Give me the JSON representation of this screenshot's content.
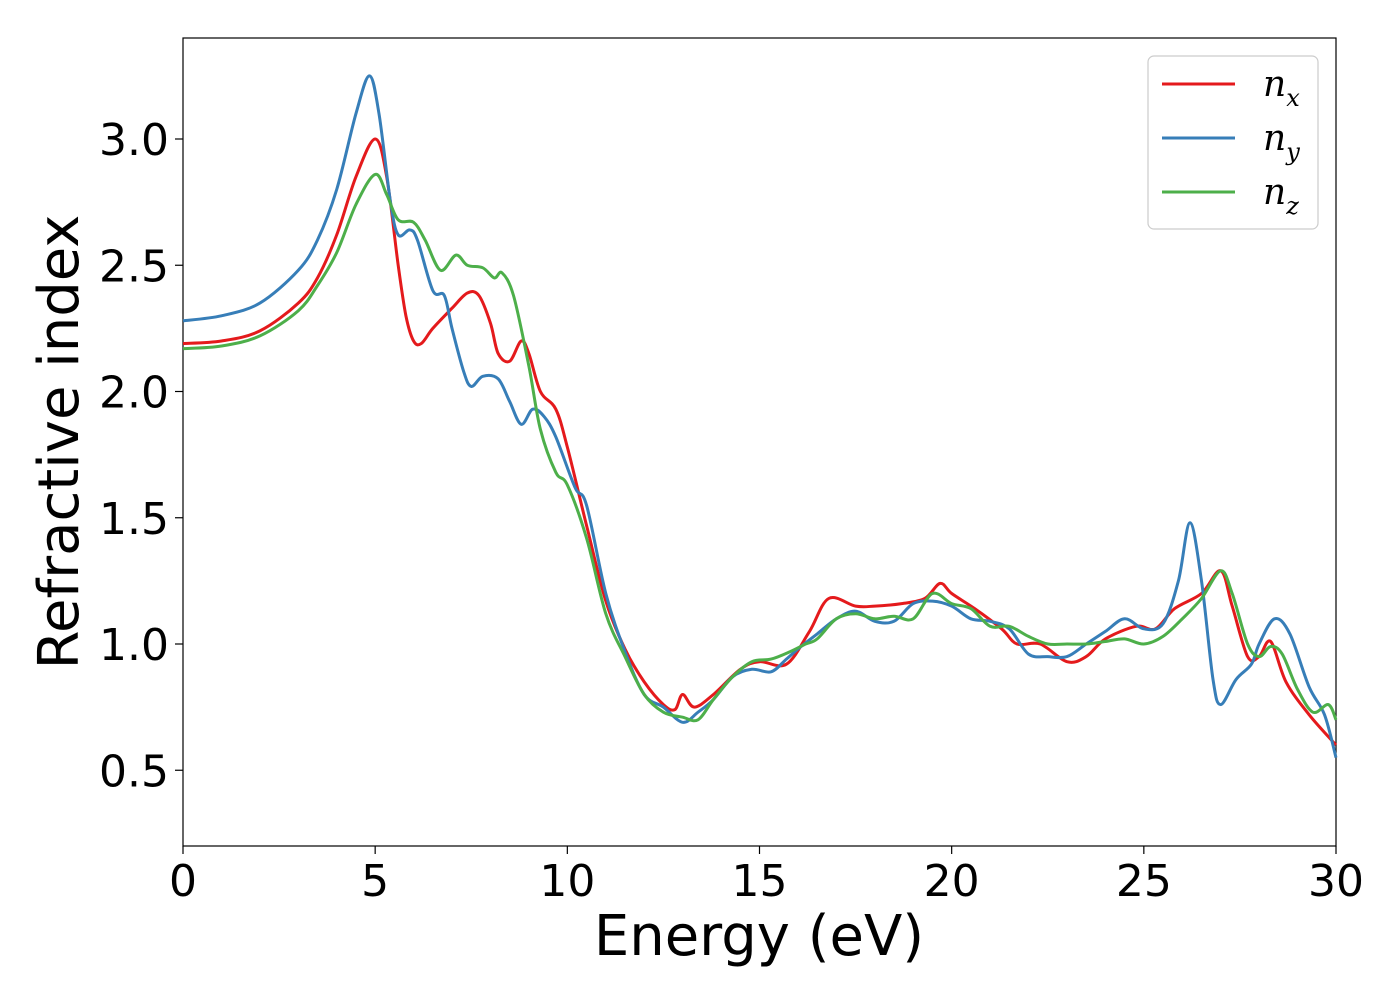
{
  "chart_data": {
    "type": "line",
    "title": "",
    "xlabel": "Energy (eV)",
    "ylabel": "Refractive index",
    "xlim": [
      0,
      30
    ],
    "ylim": [
      0.2,
      3.4
    ],
    "xticks": [
      "0",
      "5",
      "10",
      "15",
      "20",
      "25",
      "30"
    ],
    "yticks": [
      "0.5",
      "1.0",
      "1.5",
      "2.0",
      "2.5",
      "3.0"
    ],
    "grid": false,
    "legend_position": "top-right",
    "series": [
      {
        "name": "n",
        "subscript": "x",
        "color": "#e41a1c",
        "points": [
          [
            0,
            2.19
          ],
          [
            1,
            2.2
          ],
          [
            2,
            2.24
          ],
          [
            3,
            2.35
          ],
          [
            3.5,
            2.45
          ],
          [
            4,
            2.62
          ],
          [
            4.5,
            2.85
          ],
          [
            5,
            3.0
          ],
          [
            5.3,
            2.85
          ],
          [
            5.6,
            2.5
          ],
          [
            5.8,
            2.3
          ],
          [
            6.0,
            2.2
          ],
          [
            6.2,
            2.19
          ],
          [
            6.5,
            2.25
          ],
          [
            7.0,
            2.33
          ],
          [
            7.4,
            2.39
          ],
          [
            7.7,
            2.38
          ],
          [
            8.0,
            2.27
          ],
          [
            8.2,
            2.15
          ],
          [
            8.5,
            2.12
          ],
          [
            8.8,
            2.2
          ],
          [
            9.0,
            2.15
          ],
          [
            9.3,
            2.0
          ],
          [
            9.7,
            1.93
          ],
          [
            10.0,
            1.78
          ],
          [
            10.5,
            1.47
          ],
          [
            11.0,
            1.17
          ],
          [
            11.5,
            0.98
          ],
          [
            12.0,
            0.85
          ],
          [
            12.5,
            0.76
          ],
          [
            12.8,
            0.74
          ],
          [
            13.0,
            0.8
          ],
          [
            13.3,
            0.75
          ],
          [
            13.8,
            0.8
          ],
          [
            14.5,
            0.9
          ],
          [
            15.0,
            0.93
          ],
          [
            15.7,
            0.92
          ],
          [
            16.3,
            1.05
          ],
          [
            16.8,
            1.18
          ],
          [
            17.5,
            1.15
          ],
          [
            18.0,
            1.15
          ],
          [
            18.7,
            1.16
          ],
          [
            19.3,
            1.18
          ],
          [
            19.7,
            1.24
          ],
          [
            20.0,
            1.2
          ],
          [
            20.6,
            1.14
          ],
          [
            21.3,
            1.06
          ],
          [
            21.7,
            1.0
          ],
          [
            22.3,
            1.0
          ],
          [
            23.0,
            0.93
          ],
          [
            23.5,
            0.95
          ],
          [
            24.0,
            1.02
          ],
          [
            24.8,
            1.07
          ],
          [
            25.3,
            1.06
          ],
          [
            25.8,
            1.14
          ],
          [
            26.5,
            1.2
          ],
          [
            27.0,
            1.29
          ],
          [
            27.3,
            1.15
          ],
          [
            27.7,
            0.95
          ],
          [
            28.0,
            0.95
          ],
          [
            28.3,
            1.01
          ],
          [
            28.7,
            0.85
          ],
          [
            29.3,
            0.72
          ],
          [
            30.0,
            0.6
          ]
        ]
      },
      {
        "name": "n",
        "subscript": "y",
        "color": "#377eb8",
        "points": [
          [
            0,
            2.28
          ],
          [
            1,
            2.3
          ],
          [
            2,
            2.35
          ],
          [
            3,
            2.48
          ],
          [
            3.5,
            2.6
          ],
          [
            4,
            2.8
          ],
          [
            4.5,
            3.1
          ],
          [
            4.85,
            3.25
          ],
          [
            5.1,
            3.1
          ],
          [
            5.4,
            2.75
          ],
          [
            5.6,
            2.62
          ],
          [
            5.9,
            2.64
          ],
          [
            6.1,
            2.6
          ],
          [
            6.5,
            2.4
          ],
          [
            6.8,
            2.38
          ],
          [
            7.0,
            2.25
          ],
          [
            7.3,
            2.08
          ],
          [
            7.5,
            2.02
          ],
          [
            7.8,
            2.06
          ],
          [
            8.2,
            2.05
          ],
          [
            8.5,
            1.96
          ],
          [
            8.8,
            1.87
          ],
          [
            9.1,
            1.93
          ],
          [
            9.4,
            1.9
          ],
          [
            9.7,
            1.82
          ],
          [
            10.2,
            1.62
          ],
          [
            10.5,
            1.55
          ],
          [
            11.0,
            1.2
          ],
          [
            11.5,
            0.97
          ],
          [
            12.0,
            0.8
          ],
          [
            12.5,
            0.75
          ],
          [
            13.0,
            0.69
          ],
          [
            13.4,
            0.73
          ],
          [
            13.8,
            0.78
          ],
          [
            14.3,
            0.87
          ],
          [
            14.8,
            0.9
          ],
          [
            15.3,
            0.89
          ],
          [
            15.7,
            0.94
          ],
          [
            16.0,
            0.98
          ],
          [
            16.5,
            1.04
          ],
          [
            17.0,
            1.1
          ],
          [
            17.5,
            1.13
          ],
          [
            18.0,
            1.09
          ],
          [
            18.5,
            1.09
          ],
          [
            19.0,
            1.16
          ],
          [
            19.5,
            1.17
          ],
          [
            20.0,
            1.15
          ],
          [
            20.5,
            1.1
          ],
          [
            21.0,
            1.09
          ],
          [
            21.5,
            1.06
          ],
          [
            22.0,
            0.96
          ],
          [
            22.5,
            0.95
          ],
          [
            23.0,
            0.95
          ],
          [
            23.5,
            1.0
          ],
          [
            24.0,
            1.05
          ],
          [
            24.5,
            1.1
          ],
          [
            25.0,
            1.06
          ],
          [
            25.5,
            1.08
          ],
          [
            25.9,
            1.25
          ],
          [
            26.2,
            1.48
          ],
          [
            26.5,
            1.25
          ],
          [
            26.8,
            0.86
          ],
          [
            27.0,
            0.76
          ],
          [
            27.4,
            0.86
          ],
          [
            27.8,
            0.92
          ],
          [
            28.0,
            1.0
          ],
          [
            28.4,
            1.1
          ],
          [
            28.8,
            1.04
          ],
          [
            29.3,
            0.83
          ],
          [
            29.7,
            0.72
          ],
          [
            30.0,
            0.55
          ]
        ]
      },
      {
        "name": "n",
        "subscript": "z",
        "color": "#4daf4a",
        "points": [
          [
            0,
            2.17
          ],
          [
            1,
            2.18
          ],
          [
            2,
            2.22
          ],
          [
            3,
            2.32
          ],
          [
            3.5,
            2.42
          ],
          [
            4,
            2.55
          ],
          [
            4.5,
            2.74
          ],
          [
            5,
            2.86
          ],
          [
            5.3,
            2.78
          ],
          [
            5.6,
            2.68
          ],
          [
            6.0,
            2.67
          ],
          [
            6.3,
            2.6
          ],
          [
            6.7,
            2.48
          ],
          [
            7.1,
            2.54
          ],
          [
            7.4,
            2.5
          ],
          [
            7.8,
            2.49
          ],
          [
            8.1,
            2.45
          ],
          [
            8.3,
            2.47
          ],
          [
            8.6,
            2.38
          ],
          [
            9.0,
            2.1
          ],
          [
            9.3,
            1.85
          ],
          [
            9.7,
            1.68
          ],
          [
            10.0,
            1.63
          ],
          [
            10.5,
            1.42
          ],
          [
            11.0,
            1.12
          ],
          [
            11.5,
            0.95
          ],
          [
            12.0,
            0.8
          ],
          [
            12.5,
            0.73
          ],
          [
            13.0,
            0.71
          ],
          [
            13.4,
            0.7
          ],
          [
            13.8,
            0.78
          ],
          [
            14.3,
            0.87
          ],
          [
            14.8,
            0.93
          ],
          [
            15.3,
            0.94
          ],
          [
            15.8,
            0.97
          ],
          [
            16.2,
            1.0
          ],
          [
            16.5,
            1.02
          ],
          [
            17.0,
            1.1
          ],
          [
            17.5,
            1.12
          ],
          [
            18.0,
            1.1
          ],
          [
            18.5,
            1.11
          ],
          [
            19.0,
            1.1
          ],
          [
            19.5,
            1.2
          ],
          [
            20.0,
            1.16
          ],
          [
            20.5,
            1.14
          ],
          [
            21.0,
            1.07
          ],
          [
            21.5,
            1.07
          ],
          [
            22.0,
            1.03
          ],
          [
            22.5,
            1.0
          ],
          [
            23.0,
            1.0
          ],
          [
            23.5,
            1.0
          ],
          [
            24.0,
            1.01
          ],
          [
            24.5,
            1.02
          ],
          [
            25.0,
            1.0
          ],
          [
            25.5,
            1.03
          ],
          [
            26.0,
            1.1
          ],
          [
            26.5,
            1.18
          ],
          [
            27.0,
            1.29
          ],
          [
            27.3,
            1.2
          ],
          [
            27.7,
            1.0
          ],
          [
            28.0,
            0.95
          ],
          [
            28.3,
            0.99
          ],
          [
            28.6,
            0.96
          ],
          [
            29.0,
            0.82
          ],
          [
            29.4,
            0.73
          ],
          [
            29.8,
            0.76
          ],
          [
            30.0,
            0.7
          ]
        ]
      }
    ]
  }
}
